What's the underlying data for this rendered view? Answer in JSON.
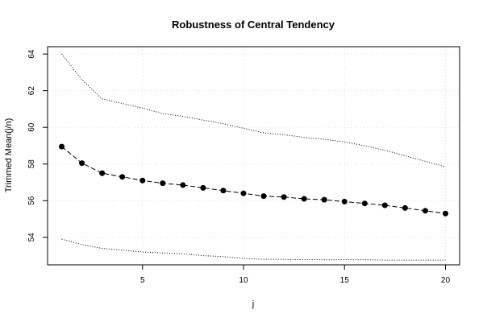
{
  "chart_data": {
    "type": "line",
    "title": "Robustness of Central Tendency",
    "xlabel": "j",
    "ylabel": "Trimmed Mean(j/n)",
    "xlim": [
      0.3,
      20.7
    ],
    "ylim": [
      52.5,
      64.4
    ],
    "xticks": [
      5,
      10,
      15,
      20
    ],
    "yticks": [
      54,
      56,
      58,
      60,
      62,
      64
    ],
    "grid": true,
    "x": [
      1,
      2,
      3,
      4,
      5,
      6,
      7,
      8,
      9,
      10,
      11,
      12,
      13,
      14,
      15,
      16,
      17,
      18,
      19,
      20
    ],
    "series": [
      {
        "style": "dotted",
        "values": [
          64.0,
          62.6,
          61.55,
          61.3,
          61.05,
          60.75,
          60.6,
          60.4,
          60.2,
          59.95,
          59.7,
          59.6,
          59.45,
          59.35,
          59.2,
          59.0,
          58.75,
          58.45,
          58.15,
          57.85
        ]
      },
      {
        "style": "dashed-markers",
        "values": [
          58.95,
          58.05,
          57.5,
          57.3,
          57.1,
          56.95,
          56.85,
          56.7,
          56.55,
          56.4,
          56.25,
          56.2,
          56.1,
          56.05,
          55.95,
          55.85,
          55.75,
          55.6,
          55.45,
          55.3
        ]
      },
      {
        "style": "dotted",
        "values": [
          53.9,
          53.6,
          53.4,
          53.3,
          53.2,
          53.15,
          53.1,
          53.0,
          52.95,
          52.85,
          52.8,
          52.8,
          52.78,
          52.78,
          52.78,
          52.78,
          52.76,
          52.76,
          52.76,
          52.76
        ]
      }
    ]
  }
}
